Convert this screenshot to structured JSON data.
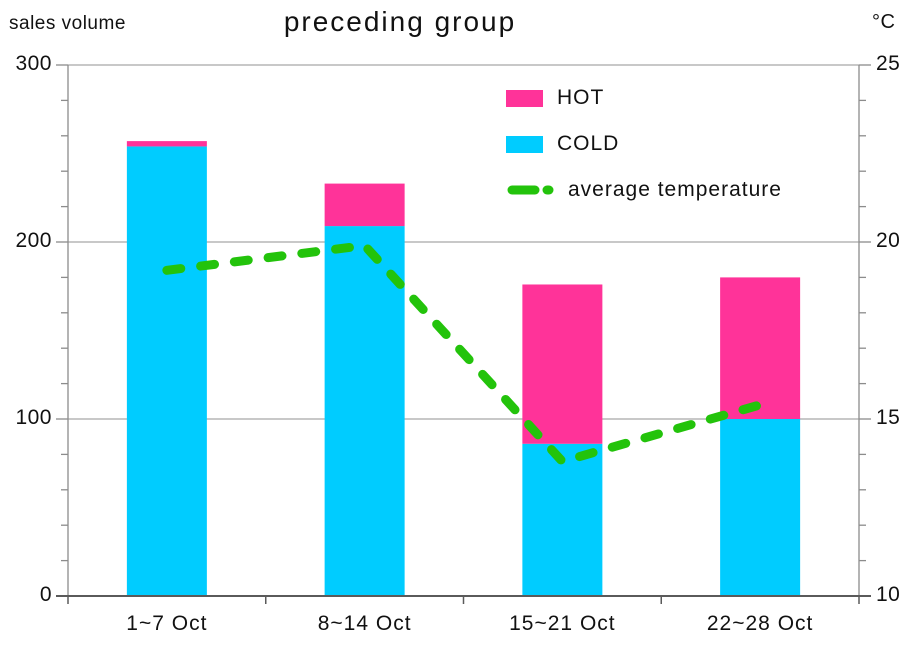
{
  "header": {
    "title": "preceding group",
    "left_axis_label": "sales volume",
    "right_axis_label": "°C"
  },
  "legend": [
    {
      "label": "HOT",
      "type": "swatch",
      "color": "#ff3399"
    },
    {
      "label": "COLD",
      "type": "swatch",
      "color": "#00ccff"
    },
    {
      "label": "average temperature",
      "type": "dash",
      "color": "#23c30b"
    }
  ],
  "chart_data": {
    "type": "combo",
    "bar_mode": "stacked",
    "title": "preceding group",
    "categories": [
      "1~7 Oct",
      "8~14 Oct",
      "15~21 Oct",
      "22~28 Oct"
    ],
    "series": [
      {
        "name": "COLD",
        "type": "bar",
        "axis": "left",
        "color": "#00ccff",
        "values": [
          254,
          209,
          86,
          100
        ]
      },
      {
        "name": "HOT",
        "type": "bar",
        "axis": "left",
        "color": "#ff3399",
        "values": [
          3,
          24,
          90,
          80
        ]
      },
      {
        "name": "average temperature",
        "type": "line",
        "style": "dashed",
        "axis": "right",
        "color": "#23c30b",
        "values": [
          19.2,
          19.9,
          13.8,
          15.4
        ]
      }
    ],
    "left_axis": {
      "label": "sales volume",
      "min": 0,
      "max": 300,
      "major_ticks": [
        0,
        100,
        200,
        300
      ],
      "minor_step": 20
    },
    "right_axis": {
      "label": "°C",
      "min": 10,
      "max": 25,
      "major_ticks": [
        10,
        15,
        20,
        25
      ],
      "minor_step": 1
    },
    "grid": true,
    "legend_position": "top-right",
    "colors": {
      "grid": "#a8a8a8",
      "side_axis": "#8c8c8c",
      "bottom_axis": "#5a5a5a",
      "text": "#111111"
    }
  }
}
